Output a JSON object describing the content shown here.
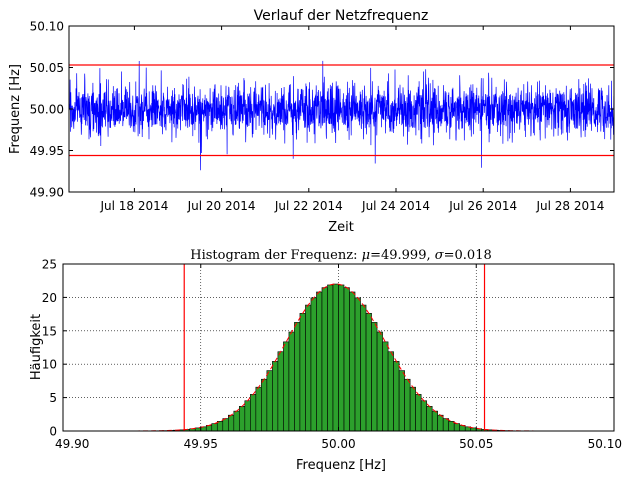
{
  "chart_data": [
    {
      "type": "line",
      "title": "Verlauf der Netzfrequenz",
      "xlabel": "Zeit",
      "ylabel": "Frequenz [Hz]",
      "ylim": [
        49.9,
        50.1
      ],
      "yticks": [
        "49.90",
        "49.95",
        "50.00",
        "50.05",
        "50.10"
      ],
      "xticks": [
        "Jul 18 2014",
        "Jul 20 2014",
        "Jul 22 2014",
        "Jul 24 2014",
        "Jul 26 2014",
        "Jul 28 2014"
      ],
      "xlim": [
        "2014-07-16 12:00",
        "2014-07-29 00:00"
      ],
      "series": [
        {
          "color": "#0000ff",
          "mean": 49.999,
          "std": 0.018,
          "min": 49.91,
          "max": 50.092
        }
      ],
      "reference_lines": [
        {
          "y": 50.053,
          "color": "#ff0000"
        },
        {
          "y": 49.944,
          "color": "#ff0000"
        }
      ],
      "grid": false
    },
    {
      "type": "bar",
      "title": "Histogram der Frequenz",
      "title_stats": {
        "mu_symbol": "μ",
        "mu": "49.999",
        "sigma_symbol": "σ",
        "sigma": "0.018"
      },
      "xlabel": "Frequenz [Hz]",
      "ylabel": "Häufigkeit",
      "xlim": [
        49.9,
        50.1
      ],
      "ylim": [
        0,
        25
      ],
      "xticks": [
        "49.90",
        "49.95",
        "50.00",
        "50.05",
        "50.10"
      ],
      "yticks": [
        "0",
        "5",
        "10",
        "15",
        "20",
        "25"
      ],
      "bar_color": "#2ca02c",
      "bin_width": 0.002,
      "bins_from": 49.908,
      "bins_to": 50.094,
      "mean": 49.999,
      "std": 0.018,
      "peak": 22,
      "fit_curve": {
        "style": "dashed",
        "color": "#ff0000"
      },
      "reference_lines": [
        {
          "x": 49.944,
          "color": "#ff0000"
        },
        {
          "x": 50.053,
          "color": "#ff0000"
        }
      ],
      "grid": true
    }
  ]
}
